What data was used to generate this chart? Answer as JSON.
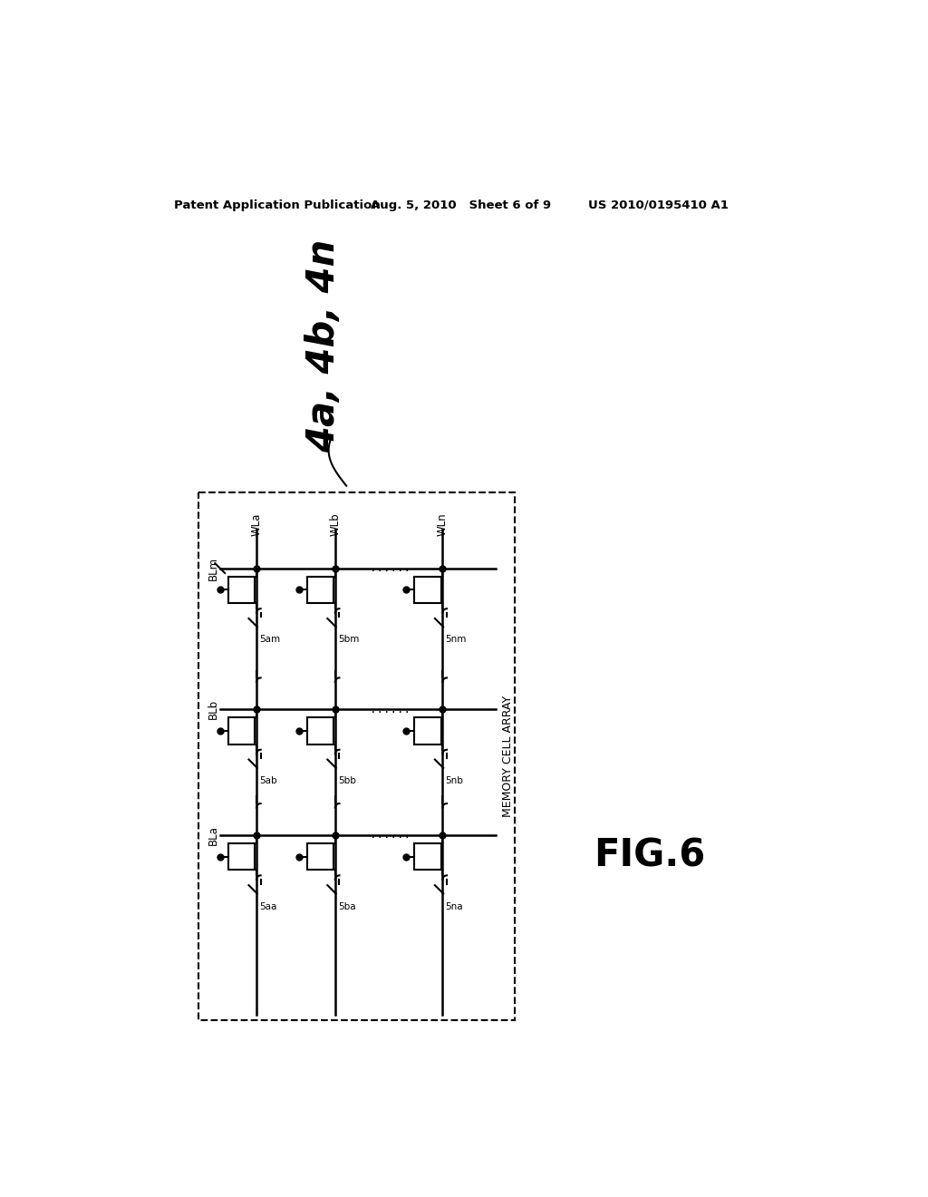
{
  "title_left": "Patent Application Publication",
  "title_mid": "Aug. 5, 2010   Sheet 6 of 9",
  "title_right": "US 2010/0195410 A1",
  "fig_label": "FIG.6",
  "memory_cell_array_label": "MEMORY CELL ARRAY",
  "label_4a4b4n": "4a, 4b, 4n",
  "bg_color": "#ffffff"
}
